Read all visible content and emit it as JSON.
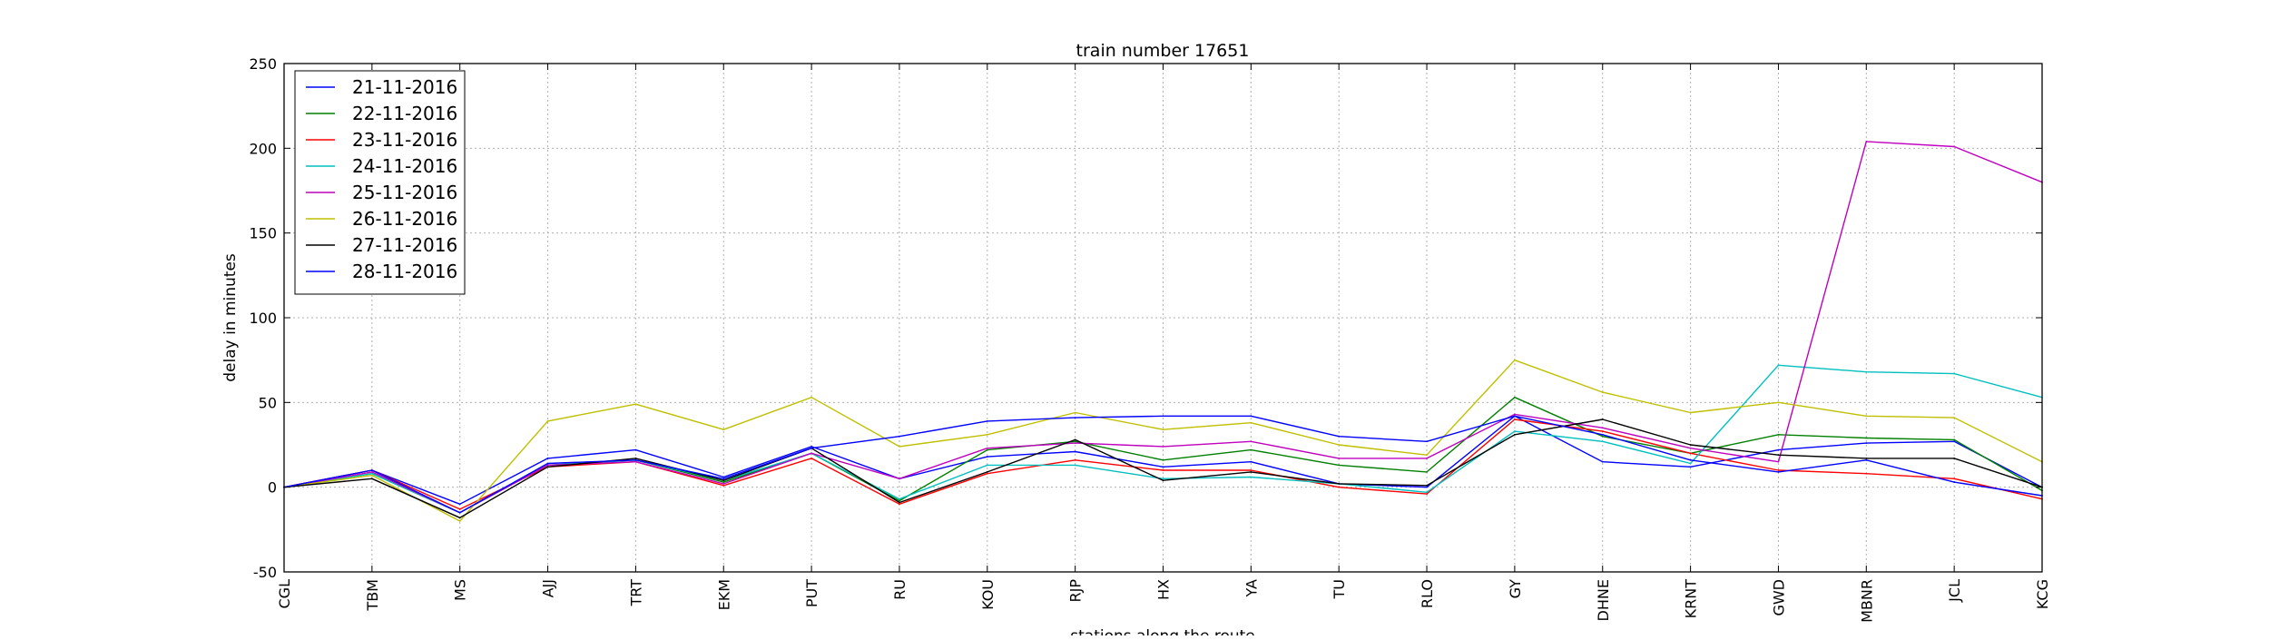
{
  "chart_data": {
    "type": "line",
    "title": "train number 17651",
    "xlabel": "stations along the route",
    "ylabel": "delay in minutes",
    "categories": [
      "CGL",
      "TBM",
      "MS",
      "AJJ",
      "TRT",
      "EKM",
      "PUT",
      "RU",
      "KOU",
      "RJP",
      "HX",
      "YA",
      "TU",
      "RLO",
      "GY",
      "DHNE",
      "KRNT",
      "GWD",
      "MBNR",
      "JCL",
      "KCG"
    ],
    "ylim": [
      -50,
      250
    ],
    "yticks": [
      -50,
      0,
      50,
      100,
      150,
      200,
      250
    ],
    "grid": true,
    "legend_position": "top-left",
    "series": [
      {
        "name": "21-11-2016",
        "color": "#0000ff",
        "values": [
          0,
          10,
          -10,
          17,
          22,
          6,
          24,
          5,
          18,
          21,
          12,
          15,
          2,
          0,
          42,
          15,
          12,
          22,
          26,
          27,
          0
        ]
      },
      {
        "name": "22-11-2016",
        "color": "#008000",
        "values": [
          0,
          8,
          -15,
          13,
          16,
          3,
          20,
          -8,
          22,
          27,
          16,
          22,
          13,
          9,
          53,
          30,
          20,
          31,
          29,
          28,
          -2
        ]
      },
      {
        "name": "23-11-2016",
        "color": "#ff0000",
        "values": [
          0,
          10,
          -13,
          12,
          15,
          1,
          17,
          -10,
          8,
          16,
          10,
          10,
          0,
          -4,
          40,
          33,
          20,
          10,
          8,
          5,
          -7
        ]
      },
      {
        "name": "24-11-2016",
        "color": "#00bfbf",
        "values": [
          0,
          8,
          -15,
          13,
          16,
          4,
          20,
          -7,
          13,
          13,
          5,
          6,
          2,
          -3,
          33,
          27,
          14,
          72,
          68,
          67,
          53
        ]
      },
      {
        "name": "25-11-2016",
        "color": "#bf00bf",
        "values": [
          0,
          9,
          -15,
          13,
          15,
          2,
          20,
          5,
          23,
          26,
          24,
          27,
          17,
          17,
          43,
          35,
          23,
          15,
          204,
          201,
          180
        ]
      },
      {
        "name": "26-11-2016",
        "color": "#bfbf00",
        "values": [
          0,
          7,
          -20,
          39,
          49,
          34,
          53,
          24,
          31,
          44,
          34,
          38,
          25,
          19,
          75,
          56,
          44,
          50,
          42,
          41,
          15
        ]
      },
      {
        "name": "27-11-2016",
        "color": "#000000",
        "values": [
          0,
          5,
          -18,
          12,
          17,
          4,
          23,
          -9,
          9,
          28,
          4,
          9,
          2,
          1,
          31,
          40,
          25,
          19,
          17,
          17,
          0
        ]
      },
      {
        "name": "28-11-2016",
        "color": "#0000ff",
        "values": [
          0,
          10,
          -15,
          14,
          16,
          5,
          23,
          30,
          39,
          41,
          42,
          42,
          30,
          27,
          42,
          31,
          16,
          9,
          16,
          3,
          -5
        ]
      }
    ]
  }
}
